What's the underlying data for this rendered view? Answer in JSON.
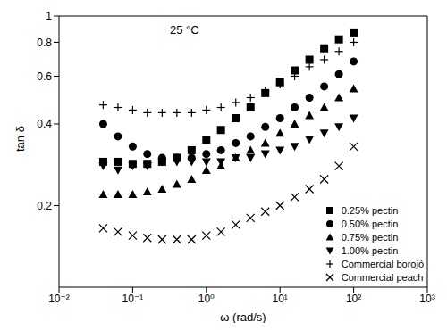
{
  "chart_data": {
    "type": "scatter",
    "annotations": [
      "25 °C"
    ],
    "xlabel": "ω (rad/s)",
    "ylabel": "tan δ",
    "log": true,
    "grid": false,
    "legend": "lower right",
    "xlim": [
      0.01,
      1000
    ],
    "xticks": [
      {
        "value": 0.01,
        "label": "10⁻²"
      },
      {
        "value": 0.1,
        "label": "10⁻¹"
      },
      {
        "value": 1,
        "label": "10⁰"
      },
      {
        "value": 10,
        "label": "10¹"
      },
      {
        "value": 100,
        "label": "10²"
      },
      {
        "value": 1000,
        "label": "10³"
      }
    ],
    "ylim": [
      0.1,
      1
    ],
    "yticks": [
      0.2,
      0.4,
      0.6,
      0.8,
      1
    ],
    "x": [
      0.0398,
      0.0631,
      0.1,
      0.158,
      0.251,
      0.398,
      0.631,
      1,
      1.58,
      2.51,
      3.98,
      6.31,
      10,
      15.8,
      25.1,
      39.8,
      63.1,
      100
    ],
    "series": [
      {
        "name": "0.25% pectin",
        "color": "#000000",
        "marker": "square",
        "values": [
          0.29,
          0.29,
          0.285,
          0.285,
          0.29,
          0.3,
          0.32,
          0.35,
          0.38,
          0.42,
          0.46,
          0.52,
          0.57,
          0.63,
          0.69,
          0.76,
          0.82,
          0.87
        ]
      },
      {
        "name": "0.50% pectin",
        "color": "#000000",
        "marker": "circle",
        "values": [
          0.4,
          0.36,
          0.33,
          0.31,
          0.3,
          0.3,
          0.3,
          0.31,
          0.32,
          0.34,
          0.36,
          0.39,
          0.42,
          0.46,
          0.5,
          0.55,
          0.61,
          0.68
        ]
      },
      {
        "name": "0.75% pectin",
        "color": "#000000",
        "marker": "triangle",
        "values": [
          0.22,
          0.22,
          0.22,
          0.225,
          0.23,
          0.24,
          0.25,
          0.27,
          0.28,
          0.3,
          0.32,
          0.34,
          0.37,
          0.4,
          0.43,
          0.46,
          0.5,
          0.54
        ]
      },
      {
        "name": "1.00% pectin",
        "color": "#000000",
        "marker": "triangle-down",
        "values": [
          0.28,
          0.27,
          0.28,
          0.28,
          0.29,
          0.29,
          0.29,
          0.29,
          0.29,
          0.3,
          0.3,
          0.31,
          0.32,
          0.33,
          0.35,
          0.37,
          0.39,
          0.42
        ]
      },
      {
        "name": "Commercial borojó",
        "color": "#000000",
        "marker": "plus",
        "values": [
          0.47,
          0.46,
          0.45,
          0.44,
          0.44,
          0.44,
          0.44,
          0.45,
          0.46,
          0.48,
          0.5,
          0.53,
          0.56,
          0.6,
          0.65,
          0.69,
          0.74,
          0.8
        ]
      },
      {
        "name": "Commercial peach",
        "color": "#000000",
        "marker": "x",
        "values": [
          0.165,
          0.16,
          0.155,
          0.152,
          0.15,
          0.15,
          0.15,
          0.155,
          0.16,
          0.17,
          0.18,
          0.19,
          0.2,
          0.215,
          0.23,
          0.25,
          0.28,
          0.33
        ]
      }
    ]
  }
}
